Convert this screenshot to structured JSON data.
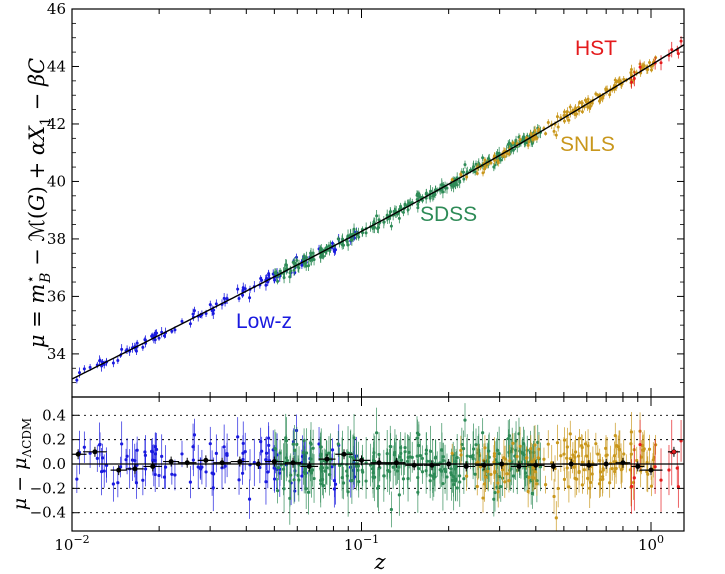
{
  "chart_data": [
    {
      "type": "scatter",
      "panel": "top",
      "ylabel": "μ = m*B − M(G) + αX1 − βC",
      "ylabel_parts": {
        "mu": "μ",
        "eq": " = ",
        "m": "m",
        "sup": "⋆",
        "sub": "B",
        "minusM": " − ℳ(",
        "G": "G",
        "close": ") + ",
        "alpha": "α",
        "X": "X",
        "X_sub": "1",
        "minus": " − ",
        "beta": "β",
        "C": "C"
      },
      "xlim": [
        0.01,
        1.3
      ],
      "xscale": "log",
      "ylim": [
        32.5,
        46
      ],
      "y_ticks": [
        34,
        36,
        38,
        40,
        42,
        44,
        46
      ],
      "y_tick_labels": [
        "34",
        "36",
        "38",
        "40",
        "42",
        "44",
        "46"
      ],
      "grid": false,
      "model_curve": "ΛCDM distance modulus",
      "series": [
        {
          "name": "Low-z",
          "color": "#1a1adf",
          "z_range": [
            0.01,
            0.1
          ],
          "count": 120
        },
        {
          "name": "SDSS",
          "color": "#2e8b57",
          "z_range": [
            0.05,
            0.42
          ],
          "count": 280
        },
        {
          "name": "SNLS",
          "color": "#c9971c",
          "z_range": [
            0.2,
            1.05
          ],
          "count": 150
        },
        {
          "name": "HST",
          "color": "#e41a1c",
          "z_range": [
            0.8,
            1.3
          ],
          "count": 10
        }
      ]
    },
    {
      "type": "scatter",
      "panel": "bottom",
      "ylabel": "μ − μΛCDM",
      "ylabel_parts": {
        "mu": "μ",
        "minus": " − ",
        "mu2": "μ",
        "sub": "ΛCDM"
      },
      "xlabel": "z",
      "xlim": [
        0.01,
        1.3
      ],
      "xscale": "log",
      "x_ticks": [
        0.01,
        0.1,
        1
      ],
      "x_tick_labels": [
        {
          "base": "10",
          "exp": "−2"
        },
        {
          "base": "10",
          "exp": "−1"
        },
        {
          "base": "10",
          "exp": "0"
        }
      ],
      "ylim": [
        -0.55,
        0.55
      ],
      "y_ticks": [
        -0.4,
        -0.2,
        0.0,
        0.2,
        0.4
      ],
      "y_tick_labels": [
        "−0.4",
        "−0.2",
        "0.0",
        "0.2",
        "0.4"
      ],
      "reference_lines": [
        -0.4,
        -0.2,
        0.2,
        0.4
      ],
      "binned_means": [
        {
          "z": 0.0105,
          "res": 0.08
        },
        {
          "z": 0.012,
          "res": 0.1
        },
        {
          "z": 0.0145,
          "res": -0.05
        },
        {
          "z": 0.0165,
          "res": -0.04
        },
        {
          "z": 0.019,
          "res": -0.02
        },
        {
          "z": 0.022,
          "res": 0.02
        },
        {
          "z": 0.025,
          "res": 0.01
        },
        {
          "z": 0.029,
          "res": 0.03
        },
        {
          "z": 0.033,
          "res": 0.01
        },
        {
          "z": 0.038,
          "res": 0.02
        },
        {
          "z": 0.044,
          "res": 0.0
        },
        {
          "z": 0.05,
          "res": 0.02
        },
        {
          "z": 0.058,
          "res": 0.01
        },
        {
          "z": 0.066,
          "res": -0.02
        },
        {
          "z": 0.076,
          "res": 0.04
        },
        {
          "z": 0.087,
          "res": 0.08
        },
        {
          "z": 0.1,
          "res": 0.03
        },
        {
          "z": 0.115,
          "res": 0.01
        },
        {
          "z": 0.132,
          "res": 0.01
        },
        {
          "z": 0.152,
          "res": -0.01
        },
        {
          "z": 0.175,
          "res": -0.01
        },
        {
          "z": 0.2,
          "res": 0.0
        },
        {
          "z": 0.23,
          "res": -0.02
        },
        {
          "z": 0.265,
          "res": -0.01
        },
        {
          "z": 0.305,
          "res": 0.0
        },
        {
          "z": 0.35,
          "res": -0.02
        },
        {
          "z": 0.4,
          "res": -0.01
        },
        {
          "z": 0.46,
          "res": -0.02
        },
        {
          "z": 0.53,
          "res": 0.0
        },
        {
          "z": 0.61,
          "res": -0.01
        },
        {
          "z": 0.7,
          "res": 0.0
        },
        {
          "z": 0.8,
          "res": 0.01
        },
        {
          "z": 0.9,
          "res": -0.02
        },
        {
          "z": 1.0,
          "res": -0.05
        },
        {
          "z": 1.2,
          "res": 0.1
        }
      ]
    }
  ]
}
